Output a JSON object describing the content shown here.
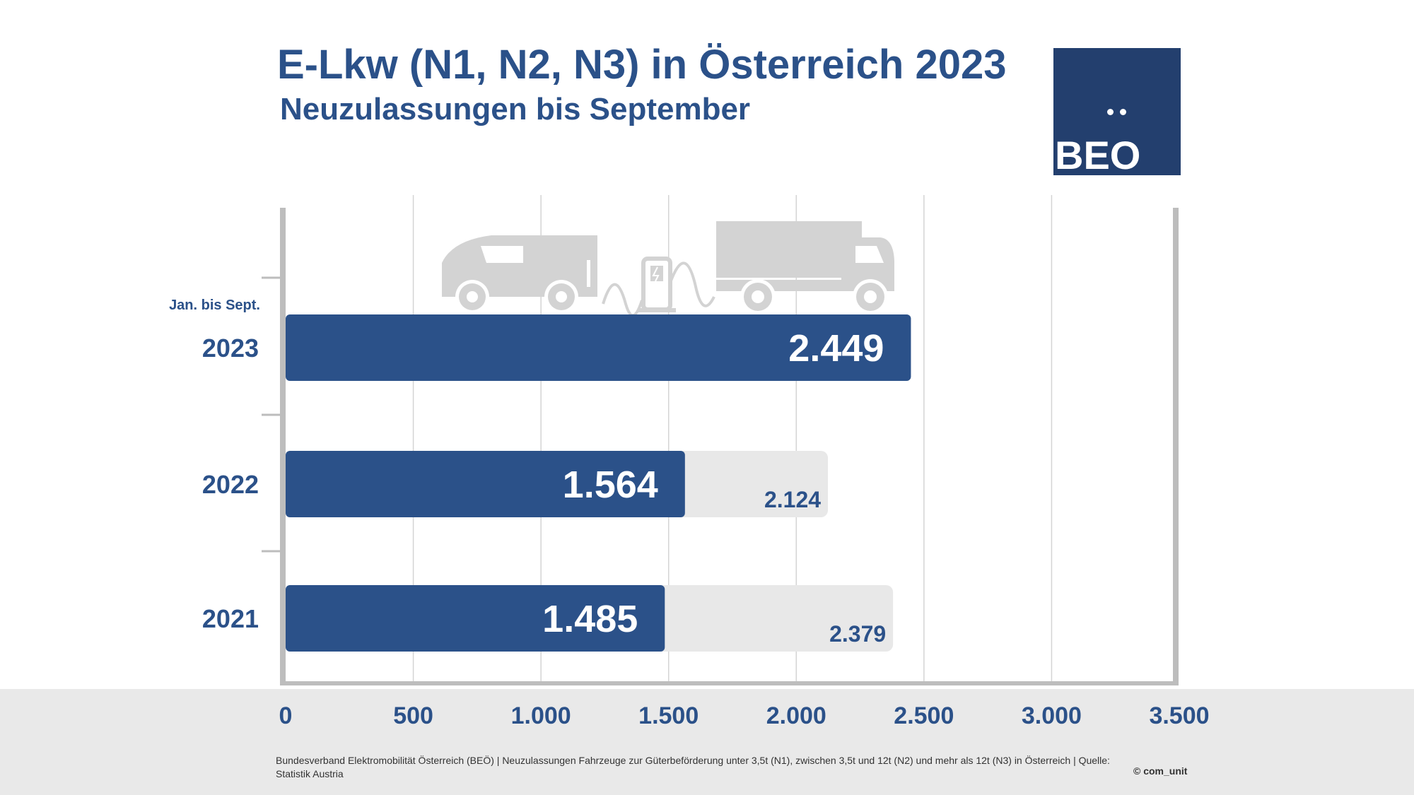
{
  "header": {
    "title": "E-Lkw (N1, N2, N3) in Österreich 2023",
    "subtitle": "Neuzulassungen bis September"
  },
  "logo": {
    "text": "BEO"
  },
  "chart_data": {
    "type": "bar",
    "orientation": "horizontal",
    "categories": [
      "2023",
      "2022",
      "2021"
    ],
    "category_note": "Jan. bis Sept.",
    "series": [
      {
        "values": [
          2449,
          1564,
          1485
        ],
        "labels": [
          "2.449",
          "1.564",
          "1.485"
        ],
        "color": "#2b5189"
      },
      {
        "values": [
          null,
          2124,
          2379
        ],
        "labels": [
          "",
          "2.124",
          "2.379"
        ],
        "color": "#e8e8e8"
      }
    ],
    "xlim": [
      0,
      3500
    ],
    "xticks": [
      0,
      500,
      1000,
      1500,
      2000,
      2500,
      3000,
      3500
    ],
    "xtick_labels": [
      "0",
      "500",
      "1.000",
      "1.500",
      "2.000",
      "2.500",
      "3.000",
      "3.500"
    ],
    "grid": true,
    "colors": {
      "primary": "#2b5189",
      "total": "#e8e8e8",
      "axis": "#bdbdbd",
      "grid": "#d4d4d4"
    }
  },
  "footer": {
    "note": "Bundesverband Elektromobilität Österreich (BEÖ) | Neuzulassungen Fahrzeuge zur Güterbeförderung unter 3,5t (N1), zwischen 3,5t und 12t (N2) und mehr als 12t (N3) in Österreich | Quelle: Statistik Austria",
    "copyright": "© com_unit"
  },
  "illustration": {
    "icons": [
      "van-icon",
      "charging-station-icon",
      "truck-icon"
    ]
  }
}
